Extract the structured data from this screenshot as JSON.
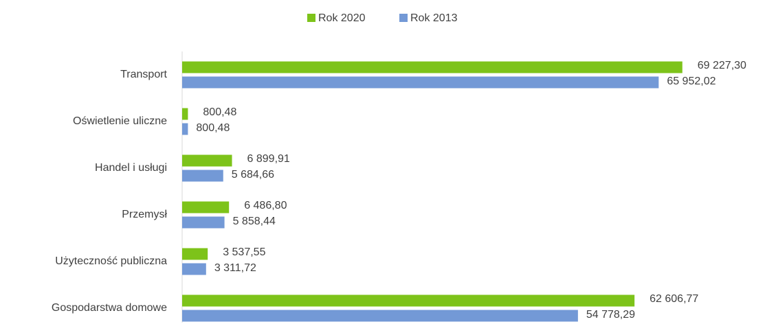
{
  "chart_data": {
    "type": "hbar",
    "categories": [
      "Transport",
      "Oświetlenie uliczne",
      "Handel i usługi",
      "Przemysł",
      "Użyteczność publiczna",
      "Gospodarstwa domowe"
    ],
    "series": [
      {
        "name": "Rok 2020",
        "color": "#7dc31a",
        "values": [
          69227.3,
          800.48,
          6899.91,
          6486.8,
          3537.55,
          62606.77
        ],
        "value_labels": [
          "69 227,30",
          "800,48",
          "6 899,91",
          "6 486,80",
          "3 537,55",
          "62 606,77"
        ]
      },
      {
        "name": "Rok 2013",
        "color": "#7399d6",
        "values": [
          65952.02,
          800.48,
          5684.66,
          5858.44,
          3311.72,
          54778.29
        ],
        "value_labels": [
          "65 952,02",
          "800,48",
          "5 684,66",
          "5 858,44",
          "3 311,72",
          "54 778,29"
        ]
      }
    ],
    "xlim": [
      0,
      80000
    ],
    "legend": "top"
  }
}
